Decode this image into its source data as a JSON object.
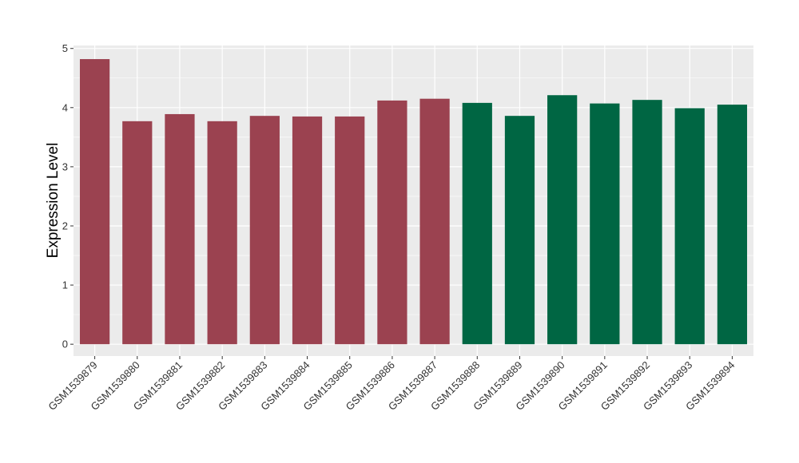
{
  "chart_data": {
    "type": "bar",
    "title": "",
    "xlabel": "",
    "ylabel": "Expression Level",
    "ylim": [
      -0.2,
      5.05
    ],
    "yticks": [
      0,
      1,
      2,
      3,
      4,
      5
    ],
    "grid": true,
    "legend": "none",
    "categories": [
      "GSM1539879",
      "GSM1539880",
      "GSM1539881",
      "GSM1539882",
      "GSM1539883",
      "GSM1539884",
      "GSM1539885",
      "GSM1539886",
      "GSM1539887",
      "GSM1539888",
      "GSM1539889",
      "GSM1539890",
      "GSM1539891",
      "GSM1539892",
      "GSM1539893",
      "GSM1539894"
    ],
    "values": [
      4.82,
      3.77,
      3.89,
      3.77,
      3.86,
      3.85,
      3.85,
      4.12,
      4.15,
      4.08,
      3.86,
      4.21,
      4.07,
      4.13,
      3.99,
      4.05
    ],
    "group_of_bar": [
      0,
      0,
      0,
      0,
      0,
      0,
      0,
      0,
      0,
      1,
      1,
      1,
      1,
      1,
      1,
      1
    ],
    "group_colors": [
      "#9b4250",
      "#006643"
    ],
    "panel_background": "#ebebeb",
    "grid_color": "#ffffff"
  }
}
